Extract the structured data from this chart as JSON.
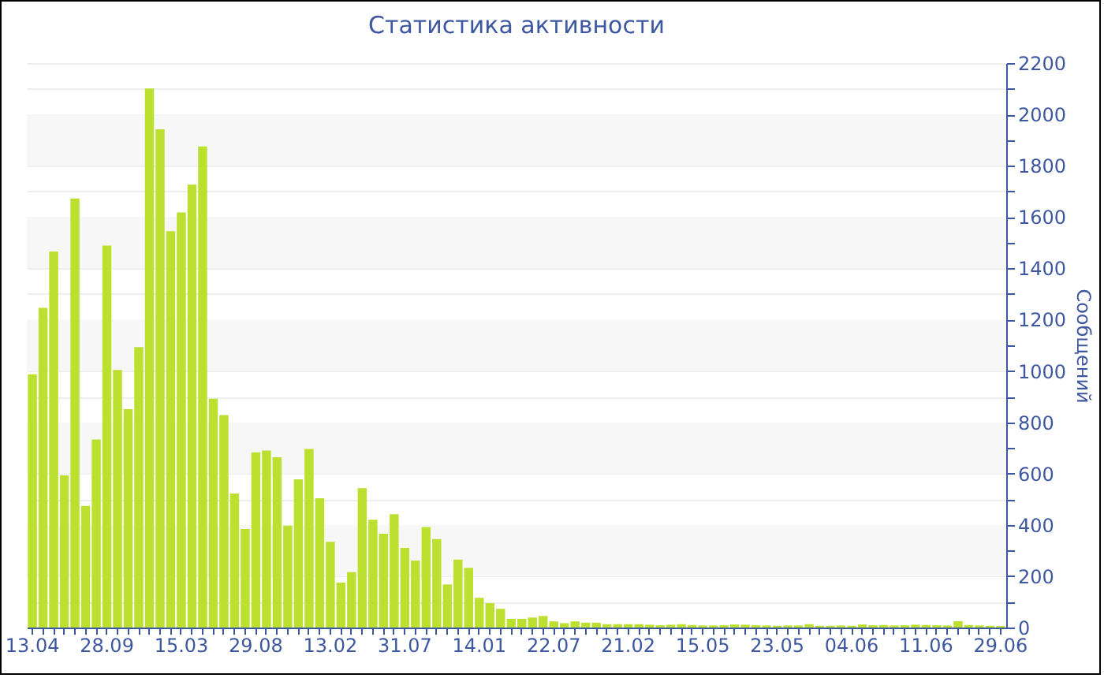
{
  "chart_data": {
    "type": "bar",
    "title": "Статистика активности",
    "ylabel": "Сообщений",
    "categories": [
      "13.04",
      null,
      null,
      null,
      null,
      null,
      null,
      "28.09",
      null,
      null,
      null,
      null,
      null,
      null,
      "15.03",
      null,
      null,
      null,
      null,
      null,
      null,
      "29.08",
      null,
      null,
      null,
      null,
      null,
      null,
      "13.02",
      null,
      null,
      null,
      null,
      null,
      null,
      "31.07",
      null,
      null,
      null,
      null,
      null,
      null,
      "14.01",
      null,
      null,
      null,
      null,
      null,
      null,
      "22.07",
      null,
      null,
      null,
      null,
      null,
      null,
      "21.02",
      null,
      null,
      null,
      null,
      null,
      null,
      "15.05",
      null,
      null,
      null,
      null,
      null,
      null,
      "23.05",
      null,
      null,
      null,
      null,
      null,
      null,
      "04.06",
      null,
      null,
      null,
      null,
      null,
      null,
      "11.06",
      null,
      null,
      null,
      null,
      null,
      null,
      "29.06"
    ],
    "values": [
      987,
      1246,
      1466,
      593,
      1672,
      474,
      733,
      1489,
      1004,
      851,
      1093,
      2101,
      1942,
      1545,
      1618,
      1726,
      1875,
      892,
      828,
      522,
      384,
      683,
      690,
      664,
      397,
      578,
      696,
      504,
      334,
      175,
      216,
      543,
      420,
      366,
      442,
      310,
      261,
      392,
      345,
      168,
      265,
      233,
      116,
      95,
      73,
      34,
      34,
      39,
      45,
      24,
      17,
      24,
      19,
      19,
      13,
      13,
      13,
      13,
      11,
      9,
      11,
      13,
      10,
      8,
      8,
      9,
      12,
      11,
      9,
      8,
      7,
      8,
      8,
      13,
      7,
      7,
      8,
      7,
      12,
      9,
      10,
      8,
      9,
      11,
      10,
      9,
      8,
      25,
      10,
      8,
      7,
      6
    ],
    "color": "#bbe02f",
    "ylim": [
      0,
      2200
    ],
    "yticks": [
      0,
      {
        "value": 100,
        "label": null
      },
      200,
      {
        "value": 300,
        "label": null
      },
      400,
      {
        "value": 500,
        "label": null
      },
      600,
      {
        "value": 700,
        "label": null
      },
      800,
      {
        "value": 900,
        "label": null
      },
      1000,
      {
        "value": 1100,
        "label": null
      },
      1200,
      {
        "value": 1300,
        "label": null
      },
      1400,
      {
        "value": 1500,
        "label": null
      },
      1600,
      {
        "value": 1700,
        "label": null
      },
      1800,
      {
        "value": 1900,
        "label": null
      },
      2000,
      {
        "value": 2100,
        "label": null
      },
      2200
    ],
    "grid": "y"
  }
}
